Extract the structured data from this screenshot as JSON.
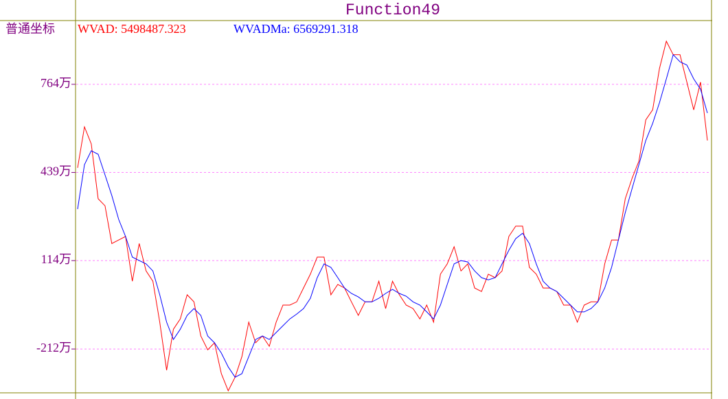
{
  "chart_data": {
    "type": "line",
    "title": "Function49",
    "axis_mode": "普通坐标",
    "ylim": [
      -3710000,
      9990000
    ],
    "yticks": [
      {
        "value": 7640000,
        "label": "764万"
      },
      {
        "value": 4390000,
        "label": "439万"
      },
      {
        "value": 1140000,
        "label": "114万"
      },
      {
        "value": -2120000,
        "label": "-212万"
      }
    ],
    "grid": true,
    "grid_color": "#ff80ff",
    "series": [
      {
        "name": "WVAD: 5498487.323",
        "color": "#ff0000",
        "values": [
          4560000,
          6070000,
          5440000,
          3420000,
          3160000,
          1770000,
          1900000,
          2030000,
          380000,
          1770000,
          760000,
          380000,
          -1130000,
          -2900000,
          -1390000,
          -1010000,
          -120000,
          -380000,
          -1640000,
          -2150000,
          -1890000,
          -3030000,
          -3660000,
          -3160000,
          -2400000,
          -1130000,
          -1890000,
          -1640000,
          -2020000,
          -1130000,
          -500000,
          -500000,
          -380000,
          130000,
          640000,
          1270000,
          1270000,
          -120000,
          260000,
          130000,
          -380000,
          -880000,
          -380000,
          -380000,
          380000,
          -630000,
          380000,
          -120000,
          -500000,
          -630000,
          -1010000,
          -500000,
          -1130000,
          640000,
          1020000,
          1650000,
          760000,
          1020000,
          130000,
          0,
          640000,
          510000,
          760000,
          2030000,
          2410000,
          2410000,
          890000,
          640000,
          130000,
          130000,
          0,
          -500000,
          -500000,
          -1130000,
          -500000,
          -380000,
          -380000,
          1020000,
          1900000,
          1900000,
          3420000,
          4180000,
          4810000,
          6330000,
          6700000,
          8220000,
          9230000,
          8730000,
          8730000,
          7720000,
          6700000,
          7720000,
          5570000
        ]
      },
      {
        "name": "WVADMa: 6569291.318",
        "color": "#0000ff",
        "values": [
          3040000,
          4680000,
          5190000,
          5060000,
          4300000,
          3540000,
          2660000,
          2030000,
          1270000,
          1140000,
          1020000,
          760000,
          -120000,
          -1130000,
          -1770000,
          -1390000,
          -880000,
          -630000,
          -880000,
          -1640000,
          -1890000,
          -2270000,
          -2780000,
          -3160000,
          -3030000,
          -2400000,
          -1770000,
          -1640000,
          -1770000,
          -1510000,
          -1260000,
          -1010000,
          -830000,
          -630000,
          -250000,
          510000,
          1020000,
          890000,
          510000,
          130000,
          -70000,
          -200000,
          -380000,
          -380000,
          -250000,
          -70000,
          80000,
          -70000,
          -170000,
          -380000,
          -500000,
          -750000,
          -1010000,
          -500000,
          260000,
          1020000,
          1140000,
          1090000,
          760000,
          510000,
          430000,
          510000,
          1020000,
          1520000,
          1950000,
          2150000,
          1770000,
          1020000,
          380000,
          130000,
          0,
          -250000,
          -500000,
          -750000,
          -750000,
          -630000,
          -380000,
          130000,
          890000,
          1900000,
          2910000,
          3800000,
          4680000,
          5570000,
          6200000,
          6960000,
          7840000,
          8730000,
          8470000,
          8350000,
          7840000,
          7460000,
          6580000
        ]
      }
    ]
  }
}
